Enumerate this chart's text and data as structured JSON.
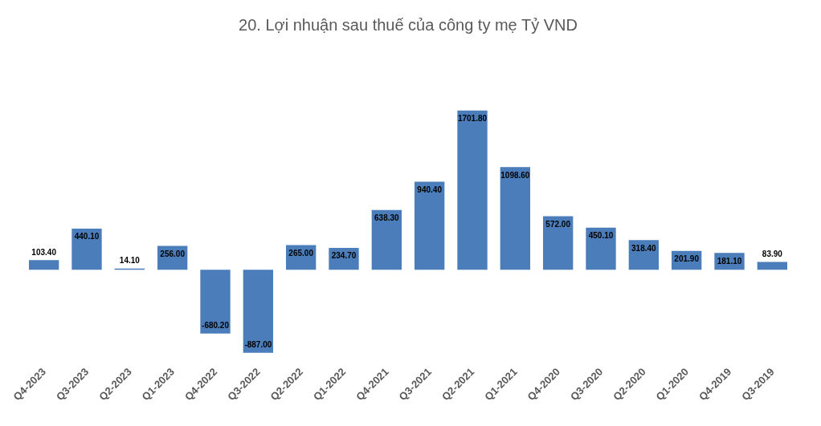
{
  "chart_data": {
    "type": "bar",
    "title": "20. Lợi nhuận sau thuế của công ty mẹ Tỷ VND",
    "categories": [
      "Q4-2023",
      "Q3-2023",
      "Q2-2023",
      "Q1-2023",
      "Q4-2022",
      "Q3-2022",
      "Q2-2022",
      "Q1-2022",
      "Q4-2021",
      "Q3-2021",
      "Q2-2021",
      "Q1-2021",
      "Q4-2020",
      "Q3-2020",
      "Q2-2020",
      "Q1-2020",
      "Q4-2019",
      "Q3-2019"
    ],
    "values": [
      103.4,
      440.1,
      14.1,
      256,
      -680.2,
      -887,
      265,
      234.7,
      638.3,
      940.4,
      1701.8,
      1098.6,
      572,
      450.1,
      318.4,
      201.9,
      181.1,
      83.9
    ],
    "value_labels": [
      "103.40",
      "440.10",
      "14.10",
      "256.00",
      "-680.20",
      "-887.00",
      "265.00",
      "234.70",
      "638.30",
      "940.40",
      "1701.80",
      "1098.60",
      "572.00",
      "450.10",
      "318.40",
      "201.90",
      "181.10",
      "83.90"
    ],
    "color": "#4a7dba"
  }
}
